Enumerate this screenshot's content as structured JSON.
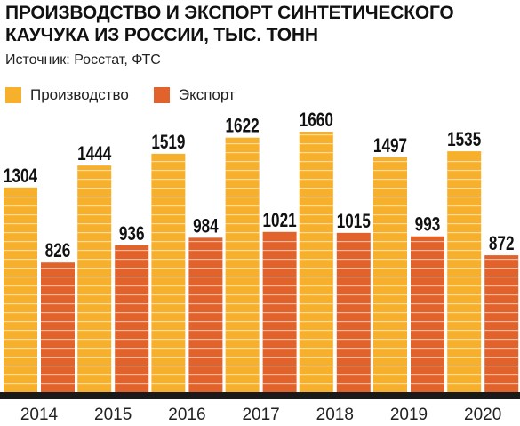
{
  "title_line1": "ПРОИЗВОДСТВО И ЭКСПОРТ СИНТЕТИЧЕСКОГО",
  "title_line2": "КАУЧУКА ИЗ РОССИИ, ТЫС. ТОНН",
  "source": "Источник: Росстат, ФТС",
  "legend": {
    "production": "Производство",
    "export": "Экспорт"
  },
  "colors": {
    "production": "#f7b02c",
    "export": "#e2622b",
    "baseline": "#1a1a1a"
  },
  "chart_data": {
    "type": "bar",
    "title": "ПРОИЗВОДСТВО И ЭКСПОРТ СИНТЕТИЧЕСКОГО КАУЧУКА ИЗ РОССИИ, ТЫС. ТОНН",
    "categories": [
      "2014",
      "2015",
      "2016",
      "2017",
      "2018",
      "2019",
      "2020"
    ],
    "series": [
      {
        "name": "Производство",
        "values": [
          1304,
          1444,
          1519,
          1622,
          1660,
          1497,
          1535
        ]
      },
      {
        "name": "Экспорт",
        "values": [
          826,
          936,
          984,
          1021,
          1015,
          993,
          872
        ]
      }
    ],
    "ylim": [
      0,
      1660
    ],
    "grid": false,
    "legend_position": "top-left",
    "data_labels": true
  }
}
